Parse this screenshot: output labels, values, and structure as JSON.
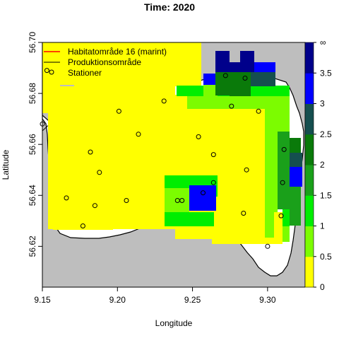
{
  "chart_data": {
    "type": "heatmap",
    "title": "Time: 2020",
    "xlabel": "Longitude",
    "ylabel": "Latitude",
    "xlim": [
      9.15,
      9.325
    ],
    "ylim": [
      56.604,
      56.7
    ],
    "x_ticks": [
      9.15,
      9.2,
      9.25,
      9.3
    ],
    "x_tick_labels": [
      "9.15",
      "9.20",
      "9.25",
      "9.30"
    ],
    "y_ticks": [
      56.62,
      56.64,
      56.66,
      56.68,
      56.7
    ],
    "y_tick_labels": [
      "56.62",
      "56.64",
      "56.66",
      "56.68",
      "56.70"
    ],
    "legend": {
      "position": "top-left",
      "entries": [
        {
          "label": "Habitatområde 16 (marint)",
          "symbol": "line",
          "color": "#ff0000"
        },
        {
          "label": "Produktionsområde",
          "symbol": "line",
          "color": "#000000"
        },
        {
          "label": "Stationer",
          "symbol": "circle",
          "color": "#000000"
        }
      ]
    },
    "colorbar": {
      "breaks": [
        0,
        0.5,
        1,
        1.5,
        2,
        2.5,
        3,
        3.5,
        "∞"
      ],
      "tick_labels": [
        "0",
        "0.5",
        "1",
        "1.5",
        "2",
        "2.5",
        "3",
        "3.5",
        "∞"
      ],
      "colors": [
        "#ffff00",
        "#7cfc00",
        "#00ee00",
        "#1aa01a",
        "#0a7a0a",
        "#154f4f",
        "#0000ff",
        "#00008b"
      ]
    },
    "stations": [
      {
        "lon": 9.15,
        "lat": 56.668
      },
      {
        "lon": 9.153,
        "lat": 56.689
      },
      {
        "lon": 9.166,
        "lat": 56.639
      },
      {
        "lon": 9.177,
        "lat": 56.628
      },
      {
        "lon": 9.182,
        "lat": 56.657
      },
      {
        "lon": 9.185,
        "lat": 56.636
      },
      {
        "lon": 9.188,
        "lat": 56.649
      },
      {
        "lon": 9.201,
        "lat": 56.673
      },
      {
        "lon": 9.206,
        "lat": 56.638
      },
      {
        "lon": 9.214,
        "lat": 56.664
      },
      {
        "lon": 9.231,
        "lat": 56.677
      },
      {
        "lon": 9.24,
        "lat": 56.638
      },
      {
        "lon": 9.243,
        "lat": 56.638
      },
      {
        "lon": 9.254,
        "lat": 56.663
      },
      {
        "lon": 9.257,
        "lat": 56.641
      },
      {
        "lon": 9.264,
        "lat": 56.656
      },
      {
        "lon": 9.264,
        "lat": 56.645
      },
      {
        "lon": 9.272,
        "lat": 56.687
      },
      {
        "lon": 9.276,
        "lat": 56.675
      },
      {
        "lon": 9.285,
        "lat": 56.686
      },
      {
        "lon": 9.284,
        "lat": 56.633
      },
      {
        "lon": 9.286,
        "lat": 56.65
      },
      {
        "lon": 9.294,
        "lat": 56.673
      },
      {
        "lon": 9.3,
        "lat": 56.62
      },
      {
        "lon": 9.309,
        "lat": 56.632
      },
      {
        "lon": 9.31,
        "lat": 56.645
      },
      {
        "lon": 9.311,
        "lat": 56.658
      }
    ]
  }
}
